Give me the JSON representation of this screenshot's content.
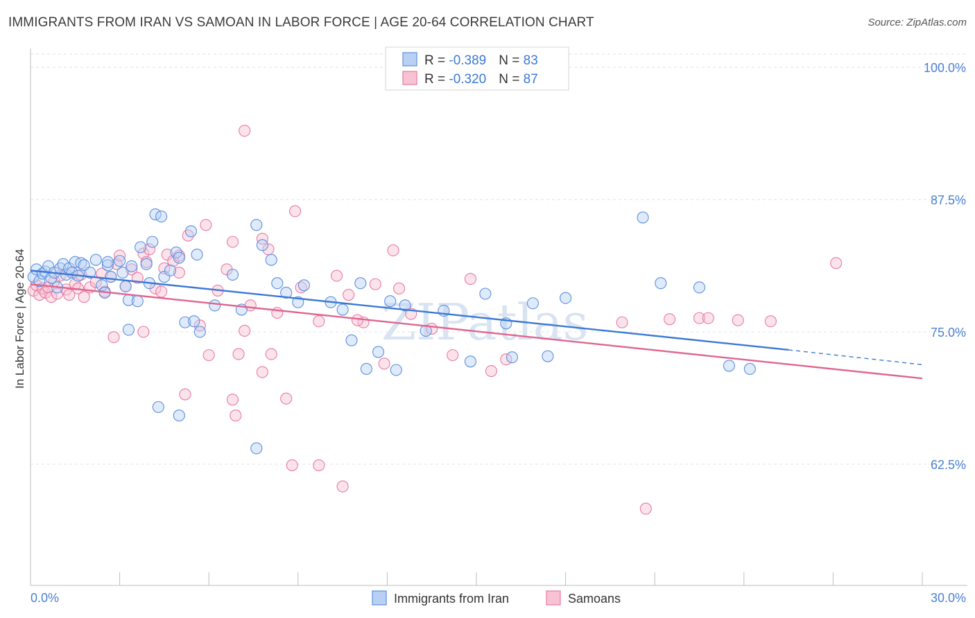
{
  "title": "IMMIGRANTS FROM IRAN VS SAMOAN IN LABOR FORCE | AGE 20-64 CORRELATION CHART",
  "source": "Source: ZipAtlas.com",
  "watermark": "ZIPatlas",
  "colors": {
    "blue": "#5b8fde",
    "blue_fill": "#b8d0f3",
    "blue_line": "#3a78d6",
    "pink": "#e87aa0",
    "pink_fill": "#f6c2d4",
    "pink_line": "#e0648f",
    "tick_text": "#4a7fd4",
    "grid": "#dcdcdc"
  },
  "legend": {
    "rows": [
      {
        "r_label": "R = ",
        "r_value": "-0.389",
        "n_label": "N = ",
        "n_value": "83"
      },
      {
        "r_label": "R = ",
        "r_value": "-0.320",
        "n_label": "N = ",
        "n_value": "87"
      }
    ]
  },
  "chart_data": {
    "type": "scatter",
    "title": "IMMIGRANTS FROM IRAN VS SAMOAN IN LABOR FORCE | AGE 20-64 CORRELATION CHART",
    "xlabel": "",
    "ylabel": "In Labor Force | Age 20-64",
    "xlim": [
      0,
      30
    ],
    "ylim": [
      52,
      103
    ],
    "x_tick_labels": [
      "0.0%",
      "30.0%"
    ],
    "y_ticks": [
      62.5,
      75.0,
      87.5,
      100.0
    ],
    "y_tick_labels": [
      "62.5%",
      "75.0%",
      "87.5%",
      "100.0%"
    ],
    "grid": true,
    "legend_position": "bottom",
    "series": [
      {
        "name": "Immigrants from Iran",
        "color": "#5b8fde",
        "trend": {
          "x": [
            0,
            25.5
          ],
          "y": [
            80.8,
            73.3
          ],
          "dashed_to": [
            30,
            71.9
          ]
        },
        "points": [
          [
            0.1,
            80.2
          ],
          [
            0.2,
            80.9
          ],
          [
            0.3,
            79.8
          ],
          [
            0.4,
            80.5
          ],
          [
            0.5,
            80.7
          ],
          [
            0.6,
            81.2
          ],
          [
            0.7,
            80.1
          ],
          [
            0.8,
            80.6
          ],
          [
            0.9,
            79.2
          ],
          [
            1.0,
            81.0
          ],
          [
            1.1,
            81.4
          ],
          [
            1.2,
            80.4
          ],
          [
            1.3,
            81.0
          ],
          [
            1.4,
            80.6
          ],
          [
            1.5,
            81.6
          ],
          [
            1.6,
            80.3
          ],
          [
            1.7,
            81.5
          ],
          [
            1.8,
            81.3
          ],
          [
            2.0,
            80.6
          ],
          [
            2.2,
            81.8
          ],
          [
            2.4,
            79.4
          ],
          [
            2.5,
            78.7
          ],
          [
            2.6,
            81.3
          ],
          [
            2.7,
            80.2
          ],
          [
            3.0,
            81.7
          ],
          [
            3.1,
            80.6
          ],
          [
            3.2,
            79.3
          ],
          [
            3.3,
            78.0
          ],
          [
            3.4,
            81.2
          ],
          [
            3.6,
            77.9
          ],
          [
            3.7,
            83.0
          ],
          [
            3.9,
            81.4
          ],
          [
            4.0,
            79.6
          ],
          [
            4.1,
            83.5
          ],
          [
            4.2,
            86.1
          ],
          [
            4.4,
            85.9
          ],
          [
            4.5,
            80.2
          ],
          [
            4.7,
            80.8
          ],
          [
            4.9,
            82.5
          ],
          [
            5.0,
            82.0
          ],
          [
            5.2,
            75.9
          ],
          [
            5.4,
            84.5
          ],
          [
            5.5,
            76.0
          ],
          [
            5.6,
            82.3
          ],
          [
            5.7,
            75.0
          ],
          [
            6.2,
            77.5
          ],
          [
            6.8,
            80.4
          ],
          [
            7.1,
            77.1
          ],
          [
            7.6,
            85.1
          ],
          [
            7.8,
            83.2
          ],
          [
            8.1,
            81.8
          ],
          [
            8.3,
            79.6
          ],
          [
            8.6,
            78.7
          ],
          [
            9.0,
            77.8
          ],
          [
            9.2,
            79.4
          ],
          [
            10.1,
            77.8
          ],
          [
            10.5,
            77.1
          ],
          [
            10.8,
            74.2
          ],
          [
            11.1,
            79.6
          ],
          [
            11.3,
            71.5
          ],
          [
            11.7,
            73.1
          ],
          [
            12.1,
            77.9
          ],
          [
            12.3,
            71.4
          ],
          [
            12.6,
            77.5
          ],
          [
            13.3,
            75.1
          ],
          [
            13.9,
            77.0
          ],
          [
            14.8,
            72.2
          ],
          [
            15.3,
            78.6
          ],
          [
            16.0,
            75.8
          ],
          [
            16.2,
            72.6
          ],
          [
            16.9,
            77.7
          ],
          [
            17.4,
            72.7
          ],
          [
            18.0,
            78.2
          ],
          [
            20.6,
            85.8
          ],
          [
            21.2,
            79.6
          ],
          [
            22.5,
            79.2
          ],
          [
            23.5,
            71.8
          ],
          [
            24.2,
            71.5
          ],
          [
            5.0,
            67.1
          ],
          [
            4.3,
            67.9
          ],
          [
            7.6,
            64.0
          ],
          [
            3.3,
            75.2
          ],
          [
            2.6,
            81.6
          ]
        ]
      },
      {
        "name": "Samoans",
        "color": "#e87aa0",
        "trend": {
          "x": [
            0,
            30
          ],
          "y": [
            79.5,
            70.6
          ]
        },
        "points": [
          [
            0.1,
            78.9
          ],
          [
            0.2,
            79.4
          ],
          [
            0.3,
            78.5
          ],
          [
            0.4,
            79.1
          ],
          [
            0.5,
            78.7
          ],
          [
            0.6,
            79.2
          ],
          [
            0.7,
            78.3
          ],
          [
            0.8,
            79.8
          ],
          [
            0.9,
            78.6
          ],
          [
            1.0,
            80.3
          ],
          [
            1.2,
            79.0
          ],
          [
            1.3,
            78.5
          ],
          [
            1.4,
            80.6
          ],
          [
            1.5,
            79.5
          ],
          [
            1.6,
            79.1
          ],
          [
            1.7,
            80.4
          ],
          [
            1.8,
            78.3
          ],
          [
            2.0,
            79.2
          ],
          [
            2.2,
            79.7
          ],
          [
            2.4,
            80.5
          ],
          [
            2.5,
            78.8
          ],
          [
            2.7,
            80.2
          ],
          [
            2.9,
            81.4
          ],
          [
            3.0,
            82.2
          ],
          [
            3.2,
            79.3
          ],
          [
            3.4,
            80.9
          ],
          [
            3.6,
            80.1
          ],
          [
            3.8,
            82.4
          ],
          [
            3.9,
            81.6
          ],
          [
            4.0,
            82.8
          ],
          [
            4.2,
            79.1
          ],
          [
            4.4,
            78.8
          ],
          [
            4.5,
            81.0
          ],
          [
            4.6,
            82.3
          ],
          [
            4.8,
            81.7
          ],
          [
            5.0,
            80.6
          ],
          [
            5.3,
            84.1
          ],
          [
            5.7,
            75.6
          ],
          [
            5.9,
            85.1
          ],
          [
            6.3,
            78.9
          ],
          [
            6.6,
            80.9
          ],
          [
            6.8,
            83.5
          ],
          [
            7.2,
            75.1
          ],
          [
            7.4,
            77.5
          ],
          [
            7.8,
            83.8
          ],
          [
            8.0,
            82.8
          ],
          [
            8.3,
            76.8
          ],
          [
            8.6,
            68.7
          ],
          [
            9.1,
            79.2
          ],
          [
            9.7,
            76.0
          ],
          [
            10.3,
            80.3
          ],
          [
            10.7,
            78.5
          ],
          [
            11.2,
            75.9
          ],
          [
            11.6,
            79.5
          ],
          [
            11.9,
            72.0
          ],
          [
            12.2,
            82.7
          ],
          [
            12.8,
            76.7
          ],
          [
            13.5,
            75.3
          ],
          [
            14.2,
            72.8
          ],
          [
            14.8,
            80.0
          ],
          [
            15.5,
            71.3
          ],
          [
            7.2,
            94.0
          ],
          [
            8.9,
            86.4
          ],
          [
            6.0,
            72.8
          ],
          [
            7.0,
            72.9
          ],
          [
            7.8,
            71.2
          ],
          [
            8.1,
            72.9
          ],
          [
            5.2,
            69.1
          ],
          [
            6.9,
            67.1
          ],
          [
            8.8,
            62.4
          ],
          [
            9.7,
            62.4
          ],
          [
            10.5,
            60.4
          ],
          [
            19.9,
            75.9
          ],
          [
            20.7,
            58.3
          ],
          [
            21.5,
            76.2
          ],
          [
            22.5,
            76.3
          ],
          [
            22.8,
            76.3
          ],
          [
            23.8,
            76.1
          ],
          [
            24.9,
            76.0
          ],
          [
            27.1,
            81.5
          ],
          [
            2.8,
            74.5
          ],
          [
            3.8,
            75.0
          ],
          [
            6.8,
            68.6
          ],
          [
            5.0,
            82.2
          ],
          [
            16.0,
            72.4
          ],
          [
            12.4,
            79.1
          ],
          [
            11.0,
            76.1
          ]
        ]
      }
    ]
  }
}
